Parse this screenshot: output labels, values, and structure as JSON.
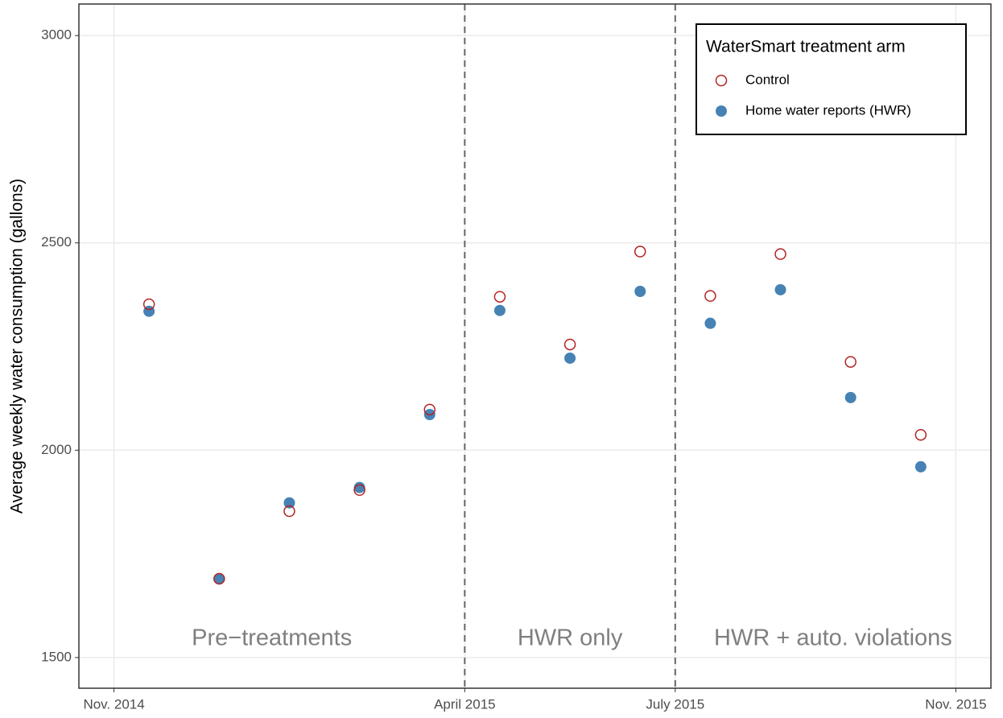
{
  "chart_data": {
    "type": "scatter",
    "y_label": "Average weekly water consumption (gallons)",
    "x": [
      "2014-11",
      "2014-12",
      "2015-01",
      "2015-02",
      "2015-03",
      "2015-04",
      "2015-05",
      "2015-06",
      "2015-07",
      "2015-08",
      "2015-09",
      "2015-10"
    ],
    "series": [
      {
        "name": "Control",
        "color": "#B22222",
        "marker": "open",
        "values": [
          2352,
          1690,
          1853,
          1904,
          2098,
          2370,
          2255,
          2479,
          2372,
          2473,
          2213,
          2037
        ]
      },
      {
        "name": "Home water reports (HWR)",
        "color": "#4682B4",
        "marker": "filled",
        "values": [
          2335,
          1690,
          1873,
          1910,
          2086,
          2337,
          2222,
          2383,
          2306,
          2387,
          2127,
          1960
        ]
      }
    ],
    "legend_title": "WaterSmart treatment arm",
    "legend": "top-right",
    "xlim": [
      "2014-10",
      "2015-11"
    ],
    "xticks": [
      {
        "value": "2014-11",
        "label": "Nov. 2014"
      },
      {
        "value": "2015-04",
        "label": "April 2015"
      },
      {
        "value": "2015-07",
        "label": "July 2015"
      },
      {
        "value": "2015-11",
        "label": "Nov. 2015"
      }
    ],
    "vlines": [
      "2015-04",
      "2015-07"
    ],
    "annotations": [
      "Pre−treatments",
      "HWR only",
      "HWR + auto. violations"
    ],
    "ylim": [
      1426,
      3076
    ],
    "yticks": [
      1500,
      2000,
      2500,
      3000
    ],
    "grid": true
  }
}
